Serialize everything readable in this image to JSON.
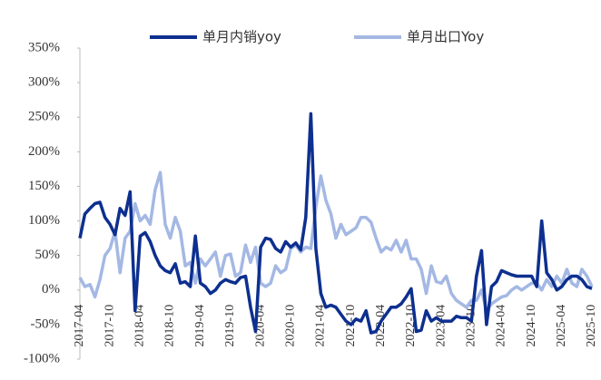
{
  "chart_data": {
    "type": "line",
    "categories": [
      "2017-04",
      null,
      null,
      null,
      null,
      null,
      "2017-10",
      null,
      null,
      null,
      null,
      null,
      "2018-04",
      null,
      null,
      null,
      null,
      null,
      "2018-10",
      null,
      null,
      null,
      null,
      null,
      "2019-04",
      null,
      null,
      null,
      null,
      null,
      "2019-10",
      null,
      null,
      null,
      null,
      null,
      "2020-04",
      null,
      null,
      null,
      null,
      null,
      "2020-10",
      null,
      null,
      null,
      null,
      null,
      "2021-04",
      null,
      null,
      null,
      null,
      null,
      "2021-10",
      null,
      null,
      null,
      null,
      null,
      "2022-04",
      null,
      null,
      null,
      null,
      null,
      "2022-10",
      null,
      null,
      null,
      null,
      null,
      "2023-04",
      null,
      null,
      null,
      null,
      null,
      "2023-10",
      null,
      null,
      null,
      null,
      null,
      "2024-04",
      null,
      null,
      null,
      null,
      null,
      "2024-10",
      null,
      null,
      null,
      null,
      null,
      "2025-04",
      null,
      null,
      null,
      null,
      null,
      "2025-10"
    ],
    "series": [
      {
        "name": "单月内销yoy",
        "color": "#0d2f8f",
        "values": [
          75,
          110,
          118,
          125,
          127,
          105,
          95,
          80,
          118,
          108,
          142,
          -30,
          78,
          83,
          70,
          50,
          35,
          28,
          25,
          38,
          10,
          12,
          5,
          78,
          10,
          5,
          -5,
          0,
          10,
          15,
          12,
          10,
          18,
          20,
          -25,
          -60,
          62,
          75,
          73,
          60,
          55,
          70,
          62,
          68,
          58,
          105,
          255,
          60,
          -5,
          -25,
          -22,
          -25,
          -35,
          -45,
          -50,
          -42,
          -45,
          -30,
          -62,
          -60,
          -45,
          -35,
          -25,
          -25,
          -20,
          -10,
          2,
          -60,
          -58,
          -30,
          -45,
          -40,
          -45,
          -45,
          -45,
          -38,
          -40,
          -40,
          -45,
          20,
          57,
          -50,
          5,
          12,
          28,
          25,
          22,
          20,
          20,
          20,
          20,
          5,
          100,
          25,
          15,
          0,
          5,
          15,
          20,
          20,
          15,
          5,
          2
        ]
      },
      {
        "name": "单月出口Yoy",
        "color": "#a4b8e4",
        "values": [
          18,
          5,
          8,
          -10,
          15,
          50,
          60,
          85,
          25,
          75,
          85,
          125,
          100,
          108,
          95,
          145,
          170,
          95,
          75,
          105,
          85,
          35,
          40,
          10,
          45,
          35,
          45,
          55,
          20,
          50,
          52,
          20,
          25,
          65,
          40,
          62,
          10,
          5,
          10,
          35,
          25,
          30,
          60,
          65,
          55,
          62,
          60,
          120,
          165,
          130,
          110,
          75,
          95,
          80,
          85,
          90,
          105,
          105,
          98,
          75,
          55,
          62,
          58,
          72,
          55,
          72,
          45,
          45,
          30,
          -5,
          35,
          12,
          10,
          20,
          -5,
          -15,
          -20,
          -25,
          -15,
          -15,
          0,
          -30,
          -20,
          -15,
          -10,
          -8,
          0,
          5,
          0,
          5,
          10,
          10,
          0,
          15,
          5,
          20,
          10,
          30,
          10,
          5,
          30,
          20,
          5
        ]
      }
    ],
    "ylim": [
      -100,
      350
    ],
    "yticks": [
      {
        "value": -100,
        "label": "-100%"
      },
      {
        "value": -50,
        "label": "-50%"
      },
      {
        "value": 0,
        "label": "0%"
      },
      {
        "value": 50,
        "label": "50%"
      },
      {
        "value": 100,
        "label": "100%"
      },
      {
        "value": 150,
        "label": "150%"
      },
      {
        "value": 200,
        "label": "200%"
      },
      {
        "value": 250,
        "label": "250%"
      },
      {
        "value": 300,
        "label": "300%"
      },
      {
        "value": 350,
        "label": "350%"
      }
    ],
    "grid": false,
    "legend": "top"
  }
}
